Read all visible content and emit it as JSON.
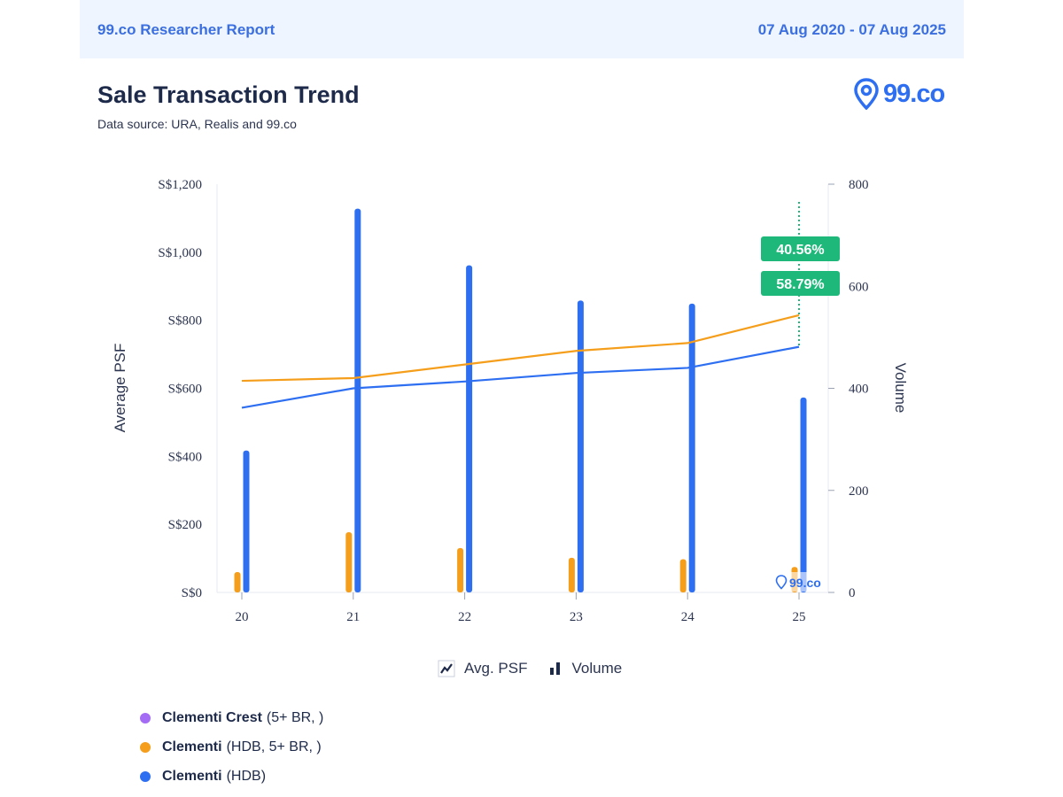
{
  "header": {
    "report_title": "99.co Researcher Report",
    "date_range": "07 Aug 2020 - 07 Aug 2025"
  },
  "page": {
    "title": "Sale Transaction Trend",
    "subtitle": "Data source: URA, Realis and 99.co",
    "logo_text": "99.co"
  },
  "legend_types": {
    "line_label": "Avg. PSF",
    "bar_label": "Volume"
  },
  "series_legend": [
    {
      "name": "Clementi Crest",
      "detail": "(5+ BR, )",
      "color": "#a46cf5"
    },
    {
      "name": "Clementi",
      "detail": "(HDB, 5+ BR, )",
      "color": "#f59e1b"
    },
    {
      "name": "Clementi",
      "detail": "(HDB)",
      "color": "#2e6ff2"
    }
  ],
  "chart_data": {
    "type": "bar",
    "categories": [
      "20",
      "21",
      "22",
      "23",
      "24",
      "25"
    ],
    "ylabel": "Average PSF",
    "y2label": "Volume",
    "ylim": [
      0,
      1200
    ],
    "y2lim": [
      0,
      800
    ],
    "yticks": [
      "S$0",
      "S$200",
      "S$400",
      "S$600",
      "S$800",
      "S$1,000",
      "S$1,200"
    ],
    "y2ticks": [
      "0",
      "200",
      "400",
      "600",
      "800"
    ],
    "watermark": "99.co",
    "series": [
      {
        "name": "Clementi (HDB, 5+ BR, )",
        "kind": "line",
        "axis": "left",
        "color": "#f59e1b",
        "values": [
          622,
          630,
          670,
          710,
          733,
          815
        ]
      },
      {
        "name": "Clementi (HDB)",
        "kind": "line",
        "axis": "left",
        "color": "#2e6ff2",
        "values": [
          543,
          600,
          620,
          645,
          660,
          722
        ]
      },
      {
        "name": "Clementi (HDB, 5+ BR, )",
        "kind": "bar",
        "axis": "right",
        "color": "#f59e1b",
        "values": [
          40,
          118,
          87,
          68,
          65,
          50
        ]
      },
      {
        "name": "Clementi (HDB)",
        "kind": "bar",
        "axis": "right",
        "color": "#2e6ff2",
        "values": [
          278,
          752,
          641,
          572,
          566,
          382
        ]
      }
    ],
    "annotations": [
      {
        "text": "40.56%",
        "color": "#1db87a"
      },
      {
        "text": "58.79%",
        "color": "#1db87a"
      }
    ]
  }
}
